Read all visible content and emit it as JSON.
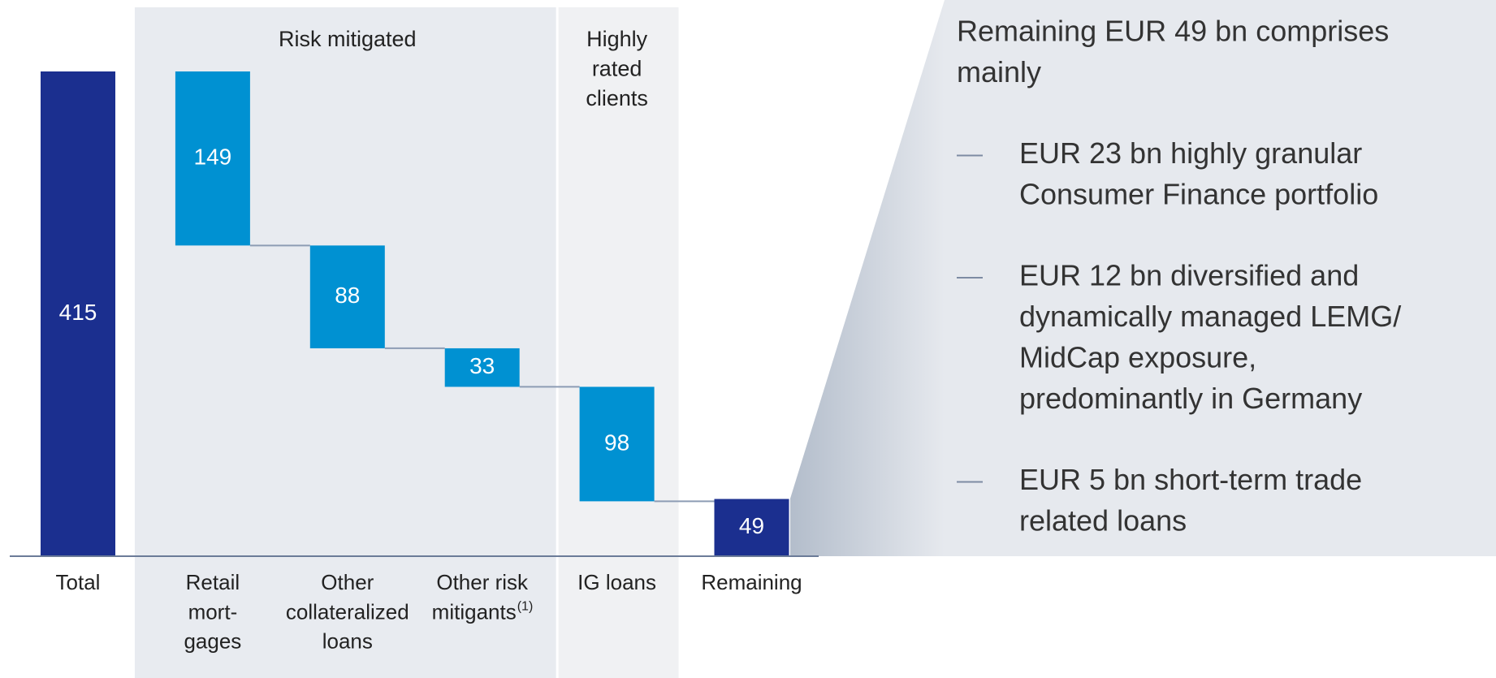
{
  "chart_data": {
    "type": "waterfall",
    "categories": [
      [
        "Total"
      ],
      [
        "Retail",
        "mort-",
        "gages"
      ],
      [
        "Other",
        "collateralized",
        "loans"
      ],
      [
        "Other risk",
        "mitigants"
      ],
      [
        "IG loans"
      ],
      [
        "Remaining"
      ]
    ],
    "category_notes": [
      null,
      null,
      null,
      "(1)",
      null,
      null
    ],
    "values": [
      415,
      149,
      88,
      33,
      98,
      49
    ],
    "kinds": [
      "total",
      "step",
      "step",
      "step",
      "step",
      "total"
    ],
    "colors": {
      "total": "#1b2f8f",
      "step": "#0091d2"
    },
    "groups": [
      {
        "label": [
          "Risk mitigated"
        ],
        "categories": [
          1,
          3
        ]
      },
      {
        "label": [
          "Highly",
          "rated",
          "clients"
        ],
        "categories": [
          4,
          4
        ]
      }
    ],
    "callout": {
      "heading": [
        "Remaining EUR 49 bn comprises",
        "mainly"
      ],
      "bullets": [
        [
          "EUR 23 bn highly granular",
          "Consumer Finance portfolio"
        ],
        [
          "EUR 12 bn diversified and",
          "dynamically managed LEMG/",
          "MidCap exposure,",
          "predominantly in Germany"
        ],
        [
          "EUR 5 bn short-term trade",
          "related loans"
        ]
      ]
    }
  }
}
